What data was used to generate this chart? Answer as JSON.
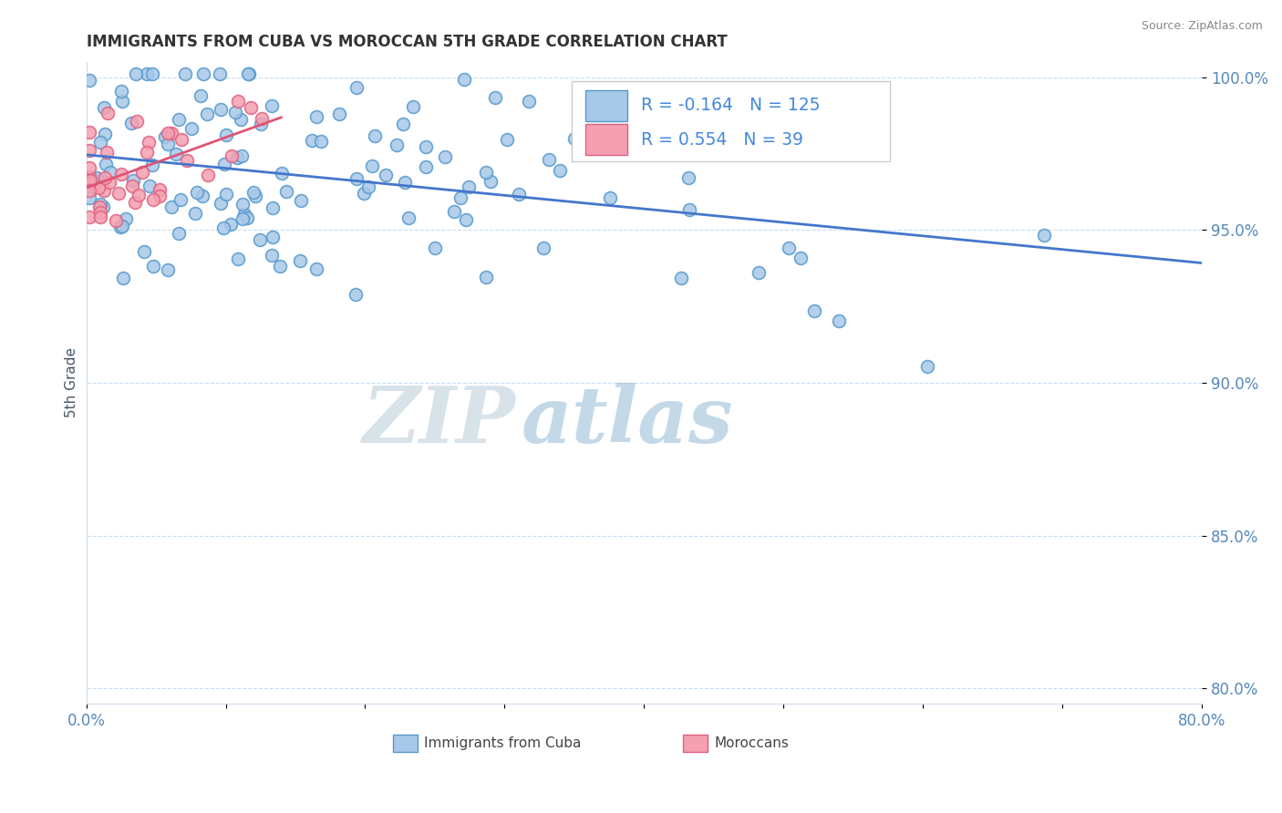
{
  "title": "IMMIGRANTS FROM CUBA VS MOROCCAN 5TH GRADE CORRELATION CHART",
  "source": "Source: ZipAtlas.com",
  "ylabel": "5th Grade",
  "xlim": [
    0.0,
    0.8
  ],
  "ylim": [
    0.795,
    1.005
  ],
  "yticks": [
    0.8,
    0.85,
    0.9,
    0.95,
    1.0
  ],
  "ytick_labels": [
    "80.0%",
    "85.0%",
    "90.0%",
    "95.0%",
    "100.0%"
  ],
  "xticks": [
    0.0,
    0.1,
    0.2,
    0.3,
    0.4,
    0.5,
    0.6,
    0.7,
    0.8
  ],
  "xtick_labels": [
    "0.0%",
    "",
    "",
    "",
    "",
    "",
    "",
    "",
    "80.0%"
  ],
  "blue_R": -0.164,
  "blue_N": 125,
  "pink_R": 0.554,
  "pink_N": 39,
  "blue_color": "#a8c8e8",
  "pink_color": "#f4a0b0",
  "blue_edge_color": "#5599cc",
  "pink_edge_color": "#e06080",
  "blue_line_color": "#4477cc",
  "pink_line_color": "#dd5577",
  "marker_size": 10,
  "background_color": "#ffffff",
  "grid_color": "#c8ddf0",
  "axis_label_color": "#445566",
  "tick_label_color": "#5588bb",
  "title_color": "#333333",
  "watermark_zip_color": "#c8d8e8",
  "watermark_atlas_color": "#88aacc",
  "legend_text_color": "#4488dd",
  "source_color": "#888888"
}
